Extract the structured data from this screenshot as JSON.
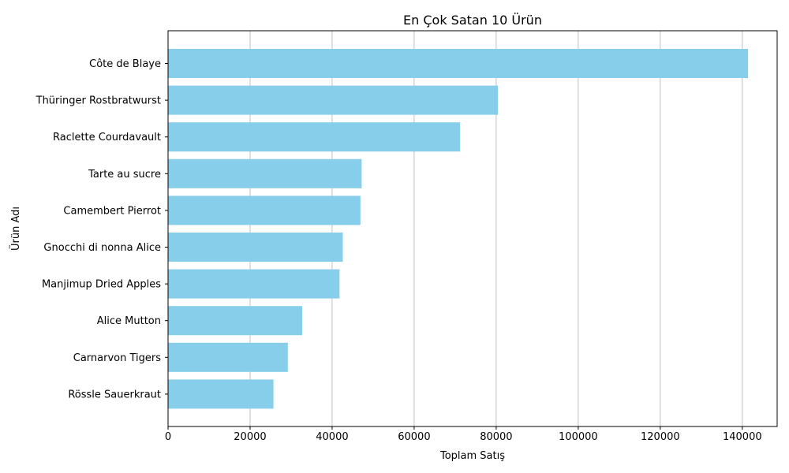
{
  "chart_data": {
    "type": "bar",
    "orientation": "horizontal",
    "title": "En Çok Satan 10 Ürün",
    "xlabel": "Toplam Satış",
    "ylabel": "Ürün Adı",
    "categories": [
      "Côte de Blaye",
      "Thüringer Rostbratwurst",
      "Raclette Courdavault",
      "Tarte au sucre",
      "Camembert Pierrot",
      "Gnocchi di nonna Alice",
      "Manjimup Dried Apples",
      "Alice Mutton",
      "Carnarvon Tigers",
      "Rössle Sauerkraut"
    ],
    "values": [
      141400,
      80400,
      71200,
      47200,
      46900,
      42600,
      41800,
      32700,
      29200,
      25700
    ],
    "xlim": [
      0,
      148500
    ],
    "xticks": [
      0,
      20000,
      40000,
      60000,
      80000,
      100000,
      120000,
      140000
    ],
    "xtick_labels": [
      "0",
      "20000",
      "40000",
      "60000",
      "80000",
      "100000",
      "120000",
      "140000"
    ],
    "grid": "x-axis vertical lines",
    "bar_color": "#87ceeb",
    "grid_color": "#b0b0b0"
  }
}
